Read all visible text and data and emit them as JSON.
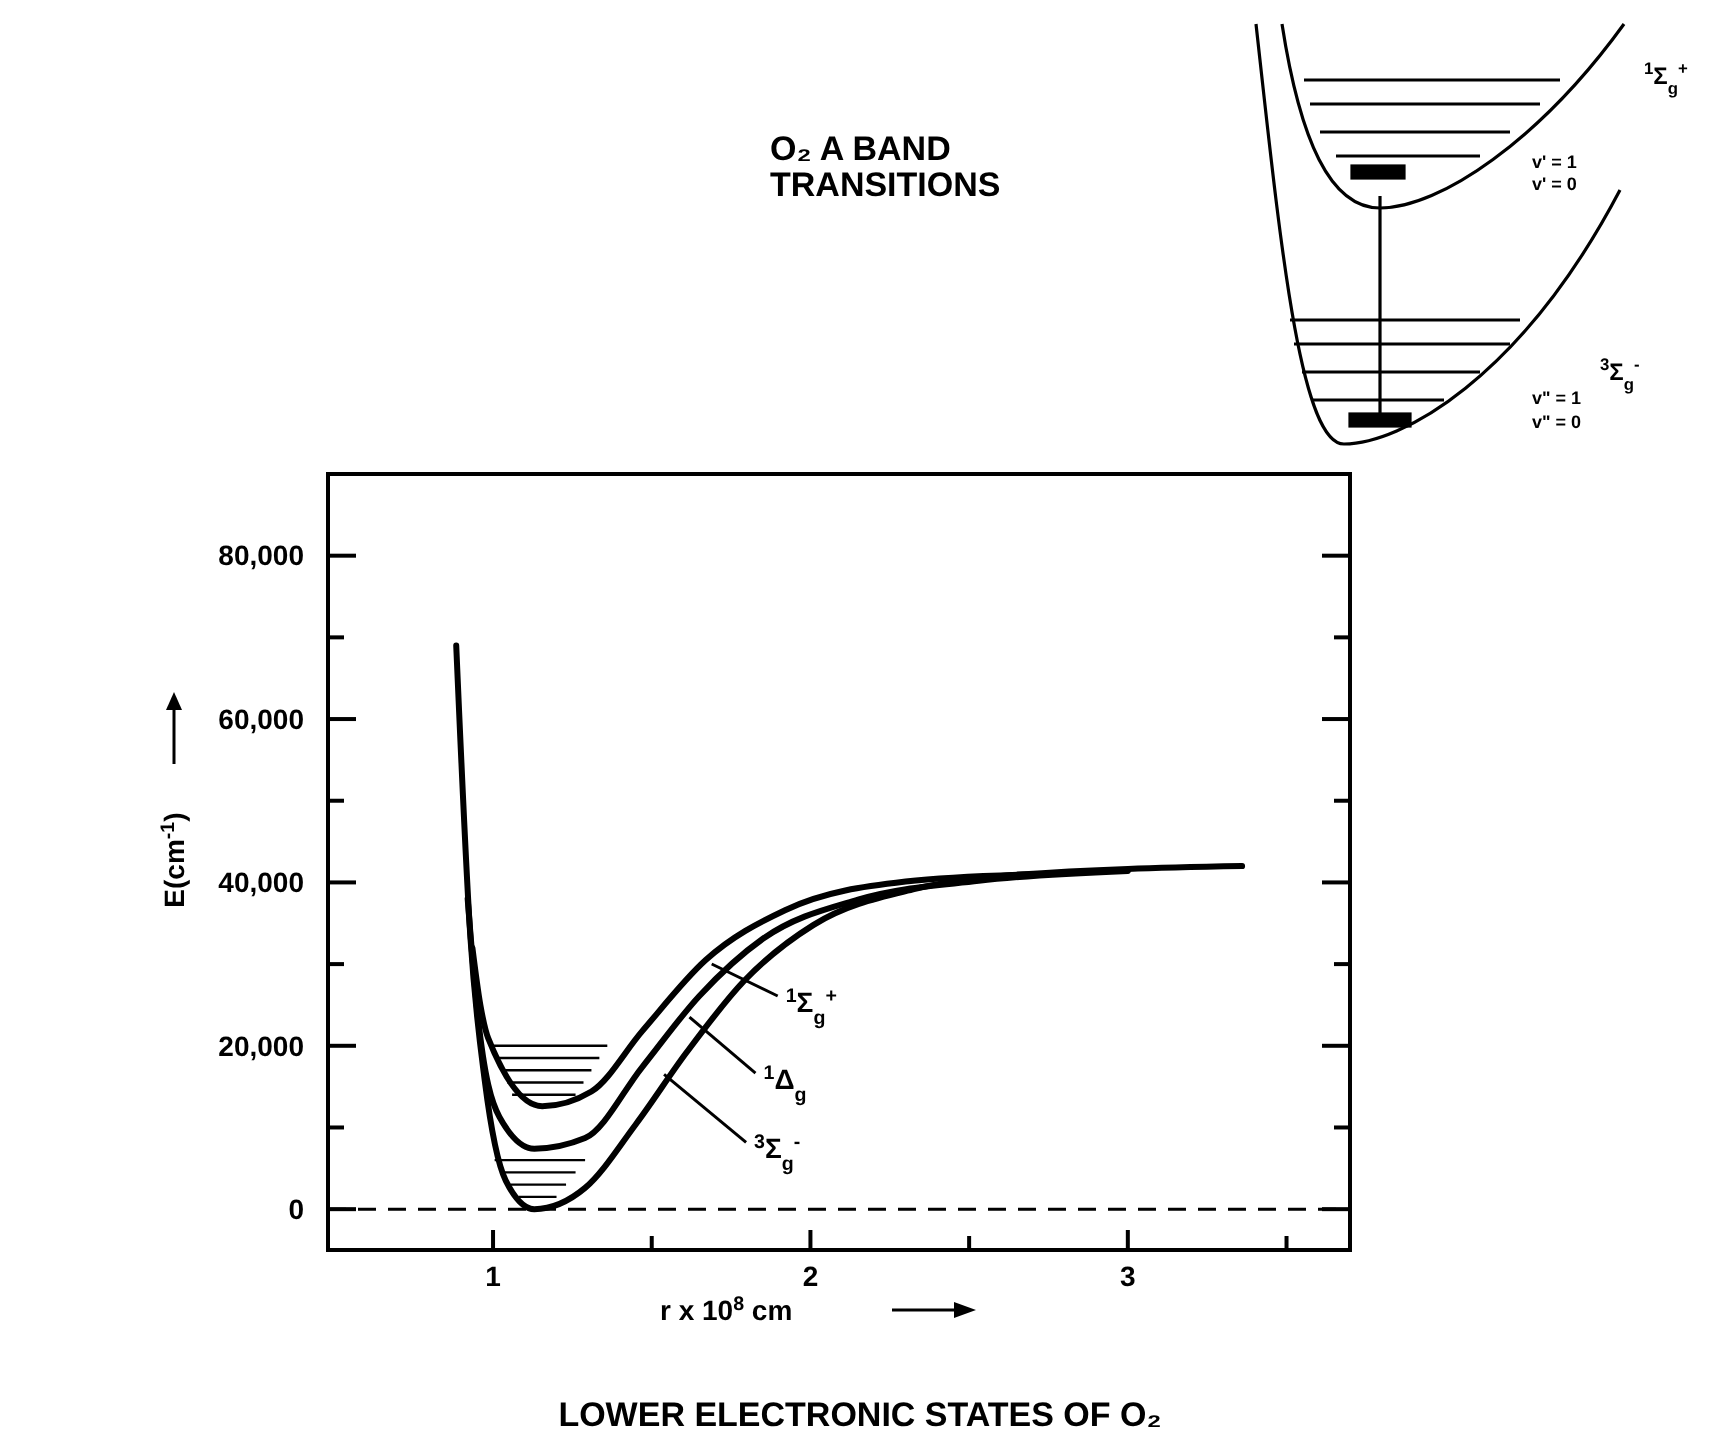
{
  "chart_data": {
    "type": "line",
    "title": "LOWER ELECTRONIC STATES OF O₂",
    "xlabel": "r x 10$^{8}$ cm",
    "ylabel": "E(cm$^{-1}$)",
    "xlim": [
      0.48,
      3.7
    ],
    "xticks": [
      1,
      {
        "value": 1.5,
        "label": null
      },
      2,
      {
        "value": 2.5,
        "label": null
      },
      3,
      {
        "value": 3.5,
        "label": null
      }
    ],
    "ylim": [
      -5000,
      90000
    ],
    "yticks": [
      0,
      {
        "value": 10000,
        "label": null
      },
      {
        "value": 20000,
        "label": "20,000"
      },
      {
        "value": 30000,
        "label": null
      },
      {
        "value": 40000,
        "label": "40,000"
      },
      {
        "value": 50000,
        "label": null
      },
      {
        "value": 60000,
        "label": "60,000"
      },
      {
        "value": 70000,
        "label": null
      },
      {
        "value": 80000,
        "label": "80,000"
      }
    ],
    "grid": false,
    "series": [
      {
        "color": "#000000",
        "x": [
          0.884,
          0.929,
          0.974,
          1.04,
          1.13,
          1.29,
          1.45,
          1.61,
          1.79,
          2.01,
          2.33,
          2.64,
          3.36
        ],
        "values": [
          69000,
          33100,
          15700,
          3500,
          0,
          2600,
          10400,
          19200,
          27900,
          34800,
          39200,
          40900,
          42000
        ]
      },
      {
        "color": "#000000",
        "x": [
          0.92,
          0.95,
          1.02,
          1.13,
          1.29,
          1.47,
          1.65,
          1.85,
          2.15,
          2.53,
          3.0
        ],
        "values": [
          38000,
          24400,
          11300,
          7400,
          8700,
          17400,
          26100,
          33100,
          37900,
          40200,
          41400
        ]
      },
      {
        "color": "#000000",
        "x": [
          0.935,
          0.96,
          0.985,
          1.155,
          1.31,
          1.47,
          1.67,
          1.92,
          2.3,
          2.7
        ],
        "values": [
          32000,
          25000,
          20900,
          12600,
          14400,
          21800,
          30500,
          36600,
          40100,
          41000
        ]
      }
    ],
    "ref_lines": [
      {
        "axis": "y",
        "value": 0,
        "color": "#000000",
        "line_style": "dashed"
      }
    ],
    "annotations": [
      {
        "text": "$^{1}$Σ$_{g}$$^{+}$",
        "x": 1.67,
        "y": 30500
      },
      {
        "text": "$^{1}$Δ$_{g}$",
        "x": 1.6,
        "y": 24000
      },
      {
        "text": "$^{3}$Σ$_{g}$$^{-}$",
        "x": 1.52,
        "y": 17000
      },
      "O₂ A BAND\nTRANSITIONS",
      "$^{1}$Σ$_{g}$$^{+}$",
      "v' = 1",
      "v' = 0",
      "$^{3}$Σ$_{g}$$^{-}$",
      "v\" = 1",
      "v\" = 0"
    ]
  }
}
